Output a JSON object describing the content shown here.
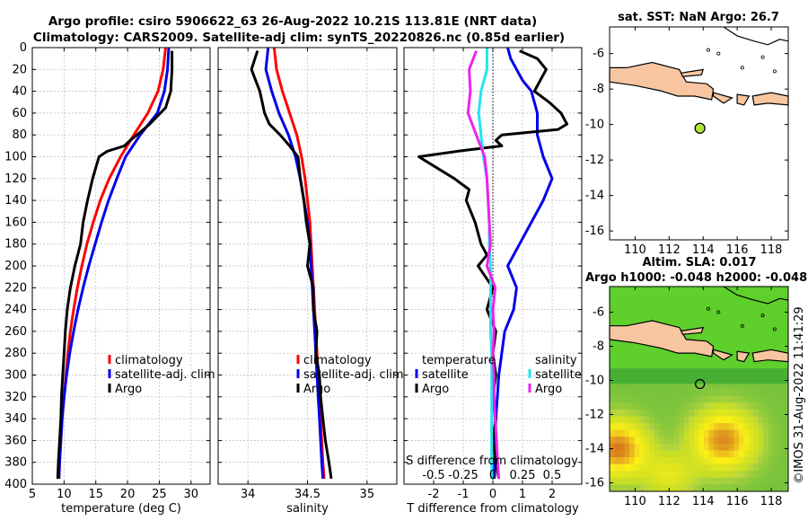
{
  "title_line1": "Argo profile: csiro 5906622_63 26-Aug-2022 10.21S 113.81E (NRT data)",
  "title_line2": "Climatology: CARS2009. Satellite-adj clim: synTS_20220826.nc (0.85d earlier)",
  "watermark": "©IMOS 31-Aug-2022 11:41:29",
  "colors": {
    "climatology": "#ff0000",
    "satellite": "#0000ee",
    "argo": "#000000",
    "s_satellite": "#22e5ee",
    "s_argo": "#ee22ee",
    "land": "#f7c6a0",
    "point": "#b6e53a"
  },
  "chart_data": [
    {
      "type": "line",
      "xlabel": "temperature (deg C)",
      "ylabel": "",
      "xlim": [
        5,
        33
      ],
      "ylim": [
        400,
        0
      ],
      "xticks": [
        "5",
        "10",
        "15",
        "20",
        "25",
        "30"
      ],
      "xtick_values": [
        5,
        10,
        15,
        20,
        25,
        30
      ],
      "yticks": [
        "0",
        "20",
        "40",
        "60",
        "80",
        "100",
        "120",
        "140",
        "160",
        "180",
        "200",
        "220",
        "240",
        "260",
        "280",
        "300",
        "320",
        "340",
        "360",
        "380",
        "400"
      ],
      "ytick_values": [
        0,
        20,
        40,
        60,
        80,
        100,
        120,
        140,
        160,
        180,
        200,
        220,
        240,
        260,
        280,
        300,
        320,
        340,
        360,
        380,
        400
      ],
      "legend": [
        "climatology",
        "satellite-adj. clim",
        "Argo"
      ],
      "series": [
        {
          "name": "climatology",
          "depth": [
            0,
            20,
            40,
            60,
            80,
            100,
            120,
            140,
            160,
            180,
            200,
            220,
            240,
            260,
            280,
            300,
            320,
            340,
            360,
            380,
            395
          ],
          "values": [
            26.0,
            25.6,
            24.8,
            23.2,
            21.0,
            18.9,
            17.1,
            15.7,
            14.6,
            13.6,
            12.8,
            12.1,
            11.5,
            11.0,
            10.6,
            10.3,
            10.0,
            9.7,
            9.5,
            9.3,
            9.2
          ]
        },
        {
          "name": "satellite-adj. clim",
          "depth": [
            0,
            20,
            40,
            60,
            80,
            100,
            120,
            140,
            160,
            180,
            200,
            220,
            240,
            260,
            280,
            300,
            320,
            340,
            360,
            380,
            395
          ],
          "values": [
            26.5,
            26.3,
            25.8,
            24.7,
            22.0,
            19.7,
            18.3,
            17.0,
            15.9,
            14.9,
            13.9,
            13.0,
            12.2,
            11.5,
            10.9,
            10.4,
            10.0,
            9.7,
            9.5,
            9.3,
            9.2
          ]
        },
        {
          "name": "Argo",
          "depth": [
            3,
            20,
            40,
            55,
            70,
            80,
            85,
            90,
            95,
            100,
            110,
            120,
            140,
            160,
            180,
            200,
            220,
            240,
            260,
            280,
            300,
            320,
            340,
            360,
            380,
            395
          ],
          "values": [
            27.0,
            27.0,
            26.8,
            26.0,
            23.5,
            21.5,
            20.4,
            19.5,
            16.8,
            15.5,
            15.0,
            14.5,
            13.7,
            13.0,
            12.6,
            11.7,
            11.0,
            10.5,
            10.2,
            10.0,
            9.8,
            9.6,
            9.5,
            9.3,
            9.1,
            9.0
          ]
        }
      ]
    },
    {
      "type": "line",
      "xlabel": "salinity",
      "xlim": [
        33.75,
        35.25
      ],
      "ylim": [
        400,
        0
      ],
      "xticks": [
        "34",
        "34.5",
        "35"
      ],
      "xtick_values": [
        34,
        34.5,
        35
      ],
      "legend": [
        "climatology",
        "satellite-adj. clim",
        "Argo"
      ],
      "series": [
        {
          "name": "climatology",
          "depth": [
            0,
            20,
            40,
            60,
            80,
            100,
            120,
            140,
            160,
            180,
            200,
            220,
            240,
            260,
            280,
            300,
            320,
            340,
            360,
            380,
            395
          ],
          "values": [
            34.22,
            34.24,
            34.29,
            34.35,
            34.41,
            34.45,
            34.48,
            34.5,
            34.52,
            34.53,
            34.54,
            34.55,
            34.56,
            34.57,
            34.58,
            34.59,
            34.6,
            34.61,
            34.62,
            34.63,
            34.64
          ]
        },
        {
          "name": "satellite-adj. clim",
          "depth": [
            0,
            20,
            40,
            60,
            80,
            100,
            120,
            140,
            160,
            180,
            200,
            220,
            240,
            260,
            280,
            300,
            320,
            340,
            360,
            380,
            395
          ],
          "values": [
            34.17,
            34.15,
            34.2,
            34.26,
            34.34,
            34.4,
            34.44,
            34.47,
            34.5,
            34.52,
            34.53,
            34.54,
            34.55,
            34.56,
            34.57,
            34.58,
            34.59,
            34.6,
            34.61,
            34.62,
            34.63
          ]
        },
        {
          "name": "Argo",
          "depth": [
            3,
            20,
            40,
            60,
            70,
            80,
            90,
            100,
            120,
            140,
            160,
            180,
            200,
            220,
            240,
            260,
            280,
            300,
            320,
            340,
            360,
            380,
            395
          ],
          "values": [
            34.08,
            34.03,
            34.1,
            34.14,
            34.18,
            34.27,
            34.35,
            34.42,
            34.44,
            34.47,
            34.49,
            34.52,
            34.5,
            34.55,
            34.55,
            34.58,
            34.57,
            34.6,
            34.61,
            34.63,
            34.65,
            34.68,
            34.7
          ]
        }
      ]
    },
    {
      "type": "line",
      "xlabel": "T difference from climatology",
      "xlabel_top": "S difference from climatology",
      "xlim": [
        -3,
        3
      ],
      "ylim": [
        400,
        0
      ],
      "xticks": [
        "-2",
        "-1",
        "0",
        "1",
        "2"
      ],
      "xtick_values": [
        -2,
        -1,
        0,
        1,
        2
      ],
      "sticks": [
        "-0.5",
        "-0.25",
        "0",
        "0.25",
        "0.5"
      ],
      "stick_values": [
        -0.5,
        -0.25,
        0,
        0.25,
        0.5
      ],
      "legend_left": [
        "temperature",
        "satellite",
        "Argo"
      ],
      "legend_right": [
        "salinity",
        "satellite",
        "Argo"
      ],
      "series": [
        {
          "name": "T satellite",
          "depth": [
            0,
            10,
            20,
            30,
            40,
            60,
            80,
            100,
            120,
            140,
            160,
            180,
            200,
            220,
            240,
            260,
            280,
            300,
            320,
            340,
            360,
            380,
            395
          ],
          "values": [
            0.5,
            0.6,
            0.8,
            1.0,
            1.3,
            1.5,
            1.5,
            1.7,
            2.0,
            1.7,
            1.3,
            0.9,
            0.5,
            0.8,
            0.7,
            0.4,
            0.3,
            0.2,
            0.15,
            0.1,
            0.08,
            0.06,
            0.05
          ]
        },
        {
          "name": "T Argo",
          "depth": [
            3,
            10,
            20,
            30,
            40,
            50,
            60,
            70,
            75,
            80,
            85,
            90,
            95,
            100,
            110,
            120,
            130,
            140,
            160,
            180,
            190,
            200,
            220,
            240,
            260,
            280,
            300,
            320,
            340,
            360,
            380,
            395
          ],
          "values": [
            0.9,
            1.5,
            1.8,
            1.6,
            1.4,
            1.9,
            2.3,
            2.5,
            2.2,
            0.3,
            0.1,
            0.3,
            -1.2,
            -2.5,
            -1.9,
            -1.3,
            -0.8,
            -0.9,
            -0.6,
            -0.4,
            -0.2,
            -0.5,
            0.0,
            -0.2,
            0.1,
            0.0,
            0.1,
            0.0,
            0.1,
            0.0,
            0.1,
            0.2
          ]
        },
        {
          "name": "S satellite",
          "depth": [
            0,
            20,
            40,
            60,
            80,
            100,
            120,
            140,
            160,
            180,
            200,
            220,
            240,
            260,
            280,
            300,
            320,
            340,
            360,
            380,
            395
          ],
          "values": [
            -0.05,
            -0.05,
            -0.1,
            -0.12,
            -0.1,
            -0.08,
            -0.05,
            -0.04,
            -0.03,
            -0.03,
            -0.02,
            -0.02,
            -0.02,
            -0.02,
            -0.01,
            -0.01,
            -0.01,
            -0.01,
            -0.01,
            -0.01,
            -0.01
          ]
        },
        {
          "name": "S Argo",
          "depth": [
            3,
            20,
            40,
            60,
            80,
            100,
            120,
            140,
            160,
            180,
            200,
            220,
            240,
            260,
            280,
            300,
            320,
            340,
            360,
            380,
            395
          ],
          "values": [
            -0.14,
            -0.2,
            -0.19,
            -0.21,
            -0.14,
            -0.07,
            -0.05,
            -0.04,
            -0.03,
            -0.02,
            -0.05,
            0.02,
            0.0,
            0.01,
            0.0,
            0.01,
            0.01,
            0.02,
            0.03,
            0.04,
            0.05
          ]
        }
      ]
    },
    {
      "type": "scatter",
      "title": "sat. SST: NaN Argo: 26.7",
      "xlim": [
        108.5,
        119
      ],
      "ylim": [
        -16.5,
        -4.5
      ],
      "xticks": [
        "110",
        "112",
        "114",
        "116",
        "118"
      ],
      "xtick_values": [
        110,
        112,
        114,
        116,
        118
      ],
      "yticks": [
        "-6",
        "-8",
        "-10",
        "-12",
        "-14",
        "-16"
      ],
      "ytick_values": [
        -6,
        -8,
        -10,
        -12,
        -14,
        -16
      ],
      "argo_position": {
        "lon": 113.81,
        "lat": -10.21
      }
    },
    {
      "type": "heatmap",
      "title": "Altim. SLA: 0.017",
      "subtitle": "Argo h1000: -0.048 h2000: -0.048",
      "xlim": [
        108.5,
        119
      ],
      "ylim": [
        -16.5,
        -4.5
      ],
      "xticks": [
        "110",
        "112",
        "114",
        "116",
        "118"
      ],
      "xtick_values": [
        110,
        112,
        114,
        116,
        118
      ],
      "yticks": [
        "-6",
        "-8",
        "-10",
        "-12",
        "-14",
        "-16"
      ],
      "ytick_values": [
        -6,
        -8,
        -10,
        -12,
        -14,
        -16
      ],
      "argo_position": {
        "lon": 113.81,
        "lat": -10.21
      }
    }
  ]
}
